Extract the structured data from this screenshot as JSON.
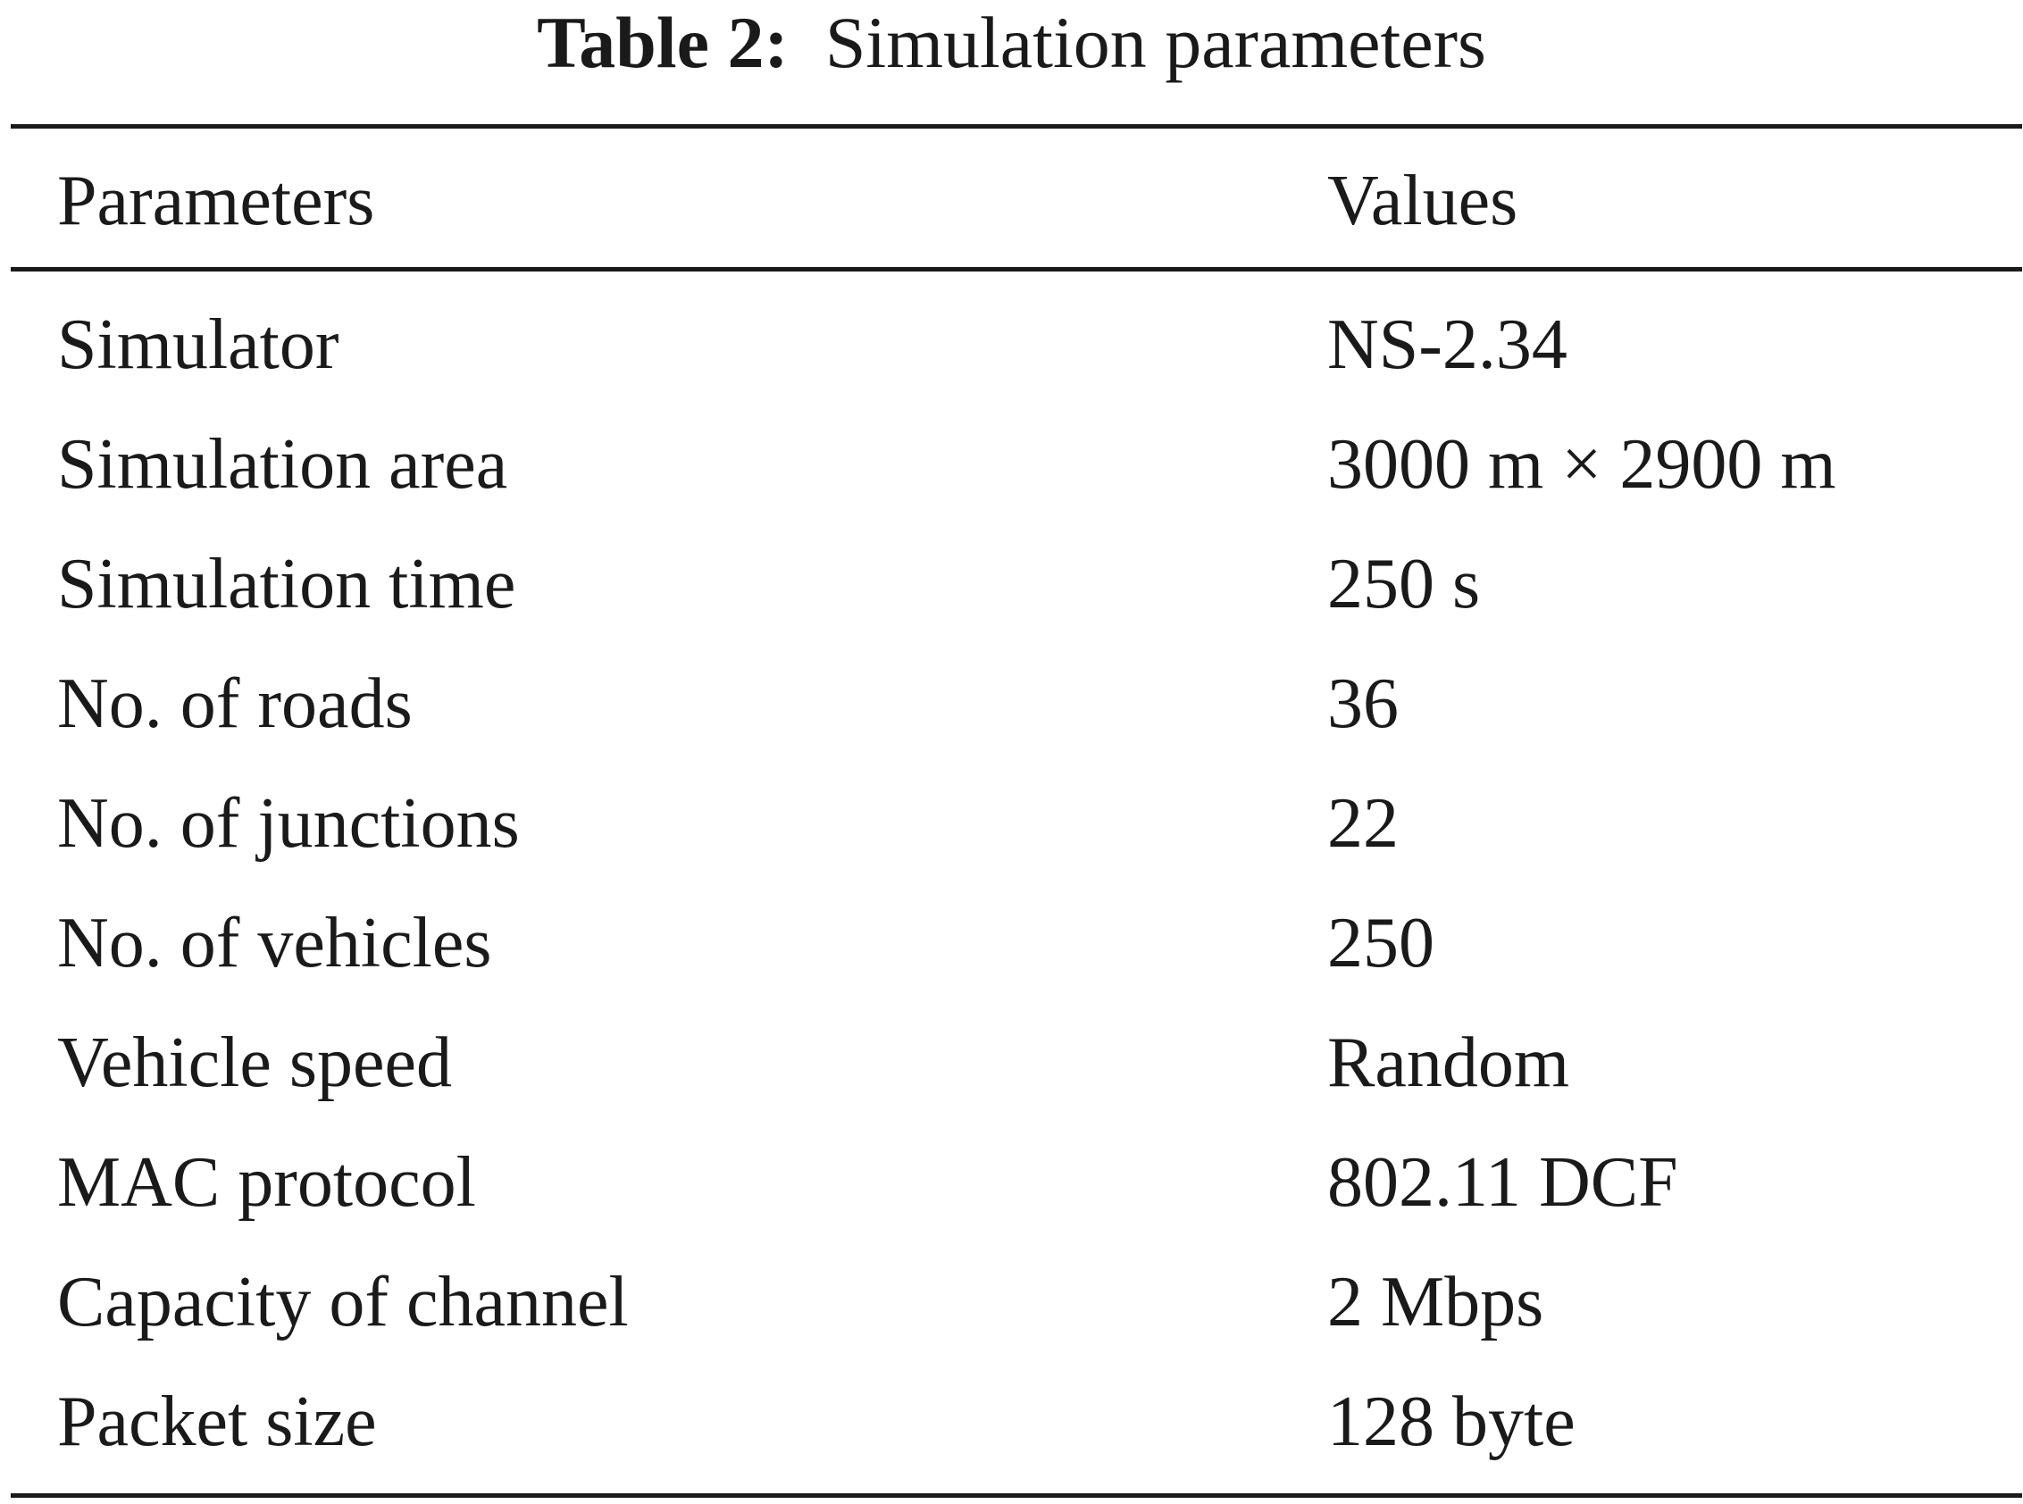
{
  "table": {
    "caption_label": "Table 2:",
    "caption_text": "Simulation parameters",
    "headers": {
      "parameter": "Parameters",
      "value": "Values"
    },
    "rows": [
      {
        "parameter": "Simulator",
        "value": "NS-2.34"
      },
      {
        "parameter": "Simulation area",
        "value": "3000 m × 2900 m"
      },
      {
        "parameter": "Simulation time",
        "value": "250 s"
      },
      {
        "parameter": "No. of roads",
        "value": "36"
      },
      {
        "parameter": "No. of junctions",
        "value": "22"
      },
      {
        "parameter": "No. of vehicles",
        "value": "250"
      },
      {
        "parameter": "Vehicle speed",
        "value": "Random"
      },
      {
        "parameter": "MAC protocol",
        "value": "802.11 DCF"
      },
      {
        "parameter": "Capacity of channel",
        "value": "2 Mbps"
      },
      {
        "parameter": "Packet size",
        "value": "128 byte"
      }
    ]
  }
}
